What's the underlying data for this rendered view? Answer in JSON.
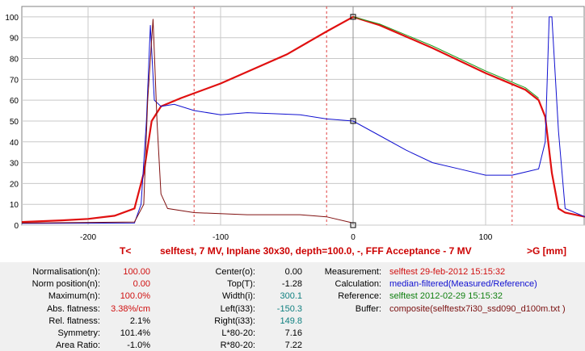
{
  "chart_data": {
    "type": "line",
    "xlim": [
      -250,
      175
    ],
    "ylim": [
      0,
      105
    ],
    "x_ticks": [
      -200,
      -100,
      0,
      100
    ],
    "y_ticks": [
      0,
      10,
      20,
      30,
      40,
      50,
      60,
      70,
      80,
      90,
      100
    ],
    "grid": true,
    "series": [
      {
        "color": "#e01010",
        "points": [
          [
            -250,
            1.5
          ],
          [
            -220,
            2.3
          ],
          [
            -200,
            3.0
          ],
          [
            -180,
            4.5
          ],
          [
            -165,
            8
          ],
          [
            -158,
            25
          ],
          [
            -152,
            50
          ],
          [
            -145,
            57
          ],
          [
            -130,
            61
          ],
          [
            -100,
            68
          ],
          [
            -50,
            82
          ],
          [
            -20,
            93
          ],
          [
            0,
            100
          ],
          [
            20,
            96
          ],
          [
            60,
            85
          ],
          [
            100,
            73
          ],
          [
            130,
            65
          ],
          [
            140,
            60
          ],
          [
            145,
            52
          ],
          [
            150,
            25
          ],
          [
            155,
            8
          ],
          [
            160,
            6
          ],
          [
            175,
            4
          ]
        ]
      },
      {
        "color": "#20a020",
        "points": [
          [
            0,
            100
          ],
          [
            20,
            96.6
          ],
          [
            60,
            86
          ],
          [
            100,
            74
          ],
          [
            130,
            66
          ],
          [
            140,
            61
          ]
        ]
      },
      {
        "color": "#1010d0",
        "points": [
          [
            -250,
            0.8
          ],
          [
            -165,
            1.0
          ],
          [
            -160,
            10
          ],
          [
            -156,
            50
          ],
          [
            -153,
            96
          ],
          [
            -150,
            60
          ],
          [
            -145,
            57
          ],
          [
            -135,
            58
          ],
          [
            -120,
            55
          ],
          [
            -100,
            53
          ],
          [
            -80,
            54
          ],
          [
            -60,
            53.5
          ],
          [
            -40,
            53
          ],
          [
            -20,
            51
          ],
          [
            0,
            50
          ],
          [
            20,
            43
          ],
          [
            40,
            36
          ],
          [
            60,
            30
          ],
          [
            80,
            27
          ],
          [
            100,
            24
          ],
          [
            120,
            24
          ],
          [
            140,
            27
          ],
          [
            145,
            40
          ],
          [
            148,
            100
          ],
          [
            150,
            100
          ],
          [
            155,
            45
          ],
          [
            160,
            8
          ],
          [
            175,
            4
          ]
        ]
      },
      {
        "color": "#801010",
        "points": [
          [
            -250,
            1
          ],
          [
            -165,
            1.5
          ],
          [
            -158,
            10
          ],
          [
            -155,
            60
          ],
          [
            -151,
            99
          ],
          [
            -148,
            50
          ],
          [
            -145,
            15
          ],
          [
            -140,
            8
          ],
          [
            -120,
            6
          ],
          [
            -80,
            5
          ],
          [
            -40,
            5
          ],
          [
            -20,
            4
          ],
          [
            0,
            1
          ]
        ]
      }
    ],
    "markers": [
      [
        0,
        100
      ],
      [
        0,
        50
      ],
      [
        0,
        0
      ]
    ],
    "vlines": [
      -120,
      -20,
      120
    ],
    "caption": "selftest, 7 MV, Inplane 30x30, depth=100.0, -, FFF Acceptance - 7 MV",
    "left_label": "T<",
    "right_label": ">G  [mm]"
  },
  "stats": {
    "col1": [
      {
        "label": "Normalisation(n):",
        "value": "100.00",
        "color": "red"
      },
      {
        "label": "Norm position(n):",
        "value": "0.00",
        "color": "red"
      },
      {
        "label": "Maximum(n):",
        "value": "100.0%",
        "color": "red"
      },
      {
        "label": "Abs. flatness:",
        "value": "3.38%/cm",
        "color": "red"
      },
      {
        "label": "Rel. flatness:",
        "value": "2.1%",
        "color": "black"
      },
      {
        "label": "Symmetry:",
        "value": "101.4%",
        "color": "black"
      },
      {
        "label": "Area Ratio:",
        "value": "-1.0%",
        "color": "black"
      }
    ],
    "col2": [
      {
        "label": "Center(o):",
        "value": "0.00",
        "color": "black"
      },
      {
        "label": "Top(T):",
        "value": "-1.28",
        "color": "black"
      },
      {
        "label": "Width(i):",
        "value": "300.1",
        "color": "teal"
      },
      {
        "label": "Left(i33):",
        "value": "-150.3",
        "color": "teal"
      },
      {
        "label": "Right(i33):",
        "value": "149.8",
        "color": "teal"
      },
      {
        "label": "L*80-20:",
        "value": "7.16",
        "color": "black"
      },
      {
        "label": "R*80-20:",
        "value": "7.22",
        "color": "black"
      }
    ],
    "col3": [
      {
        "label": "Measurement:",
        "value": "selftest 29-feb-2012 15:15:32",
        "color": "red"
      },
      {
        "label": "Calculation:",
        "value": "median-filtered(Measured/Reference)",
        "color": "blue"
      },
      {
        "label": "Reference:",
        "value": "selftest 2012-02-29 15:15:32",
        "color": "green"
      },
      {
        "label": "Buffer:",
        "value": "composite(selftestx7i30_ssd090_d100m.txt )",
        "color": "maroon"
      }
    ]
  }
}
